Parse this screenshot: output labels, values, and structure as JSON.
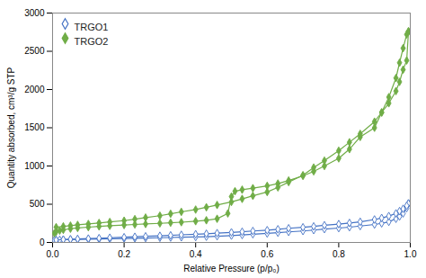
{
  "chart_data": {
    "type": "line",
    "title": "",
    "xlabel": "Relative Pressure (p/p₀)",
    "ylabel": "Quantity absorbed, cm³/g STP",
    "xlim": [
      0,
      1.0
    ],
    "ylim": [
      0,
      3000
    ],
    "xticks": [
      {
        "value": 0,
        "label": "0.0"
      },
      0.2,
      0.4,
      0.6,
      0.8,
      {
        "value": 1.0,
        "label": "1.0"
      }
    ],
    "yticks": [
      0,
      500,
      1000,
      1500,
      2000,
      2500,
      3000
    ],
    "grid": false,
    "legend": "upper left",
    "series": [
      {
        "name": "TRGO1",
        "color": "#4472C4",
        "marker": "diamond-open",
        "line_style": "solid",
        "x": [
          0.005,
          0.01,
          0.02,
          0.03,
          0.05,
          0.07,
          0.1,
          0.13,
          0.16,
          0.2,
          0.23,
          0.26,
          0.3,
          0.33,
          0.36,
          0.4,
          0.43,
          0.46,
          0.5,
          0.53,
          0.56,
          0.6,
          0.63,
          0.66,
          0.7,
          0.73,
          0.76,
          0.8,
          0.83,
          0.86,
          0.9,
          0.92,
          0.94,
          0.96,
          0.97,
          0.98,
          0.99,
          0.995
        ],
        "values": [
          30,
          32,
          34,
          36,
          38,
          40,
          42,
          45,
          48,
          52,
          55,
          58,
          62,
          65,
          68,
          72,
          76,
          82,
          90,
          98,
          108,
          118,
          128,
          138,
          150,
          162,
          175,
          188,
          200,
          215,
          235,
          250,
          270,
          310,
          340,
          380,
          450,
          510
        ]
      },
      {
        "color": "#4472C4",
        "marker": "diamond-open",
        "line_style": "solid",
        "x": [
          0.995,
          0.99,
          0.98,
          0.97,
          0.96,
          0.94,
          0.92,
          0.9,
          0.86,
          0.83,
          0.8,
          0.76,
          0.73,
          0.7,
          0.66,
          0.63,
          0.6,
          0.56,
          0.53,
          0.5,
          0.46,
          0.43,
          0.4,
          0.36,
          0.33,
          0.3,
          0.26,
          0.23,
          0.2,
          0.16,
          0.13,
          0.1,
          0.07,
          0.05,
          0.03,
          0.01
        ],
        "values": [
          510,
          480,
          440,
          410,
          380,
          345,
          320,
          300,
          270,
          255,
          240,
          225,
          210,
          198,
          185,
          172,
          160,
          150,
          140,
          132,
          122,
          114,
          108,
          100,
          93,
          87,
          80,
          74,
          68,
          62,
          56,
          51,
          46,
          42,
          38,
          32
        ]
      },
      {
        "name": "TRGO2",
        "color": "#70AD47",
        "marker": "diamond",
        "line_style": "solid",
        "x": [
          0.005,
          0.01,
          0.02,
          0.03,
          0.05,
          0.07,
          0.1,
          0.13,
          0.16,
          0.2,
          0.23,
          0.26,
          0.3,
          0.33,
          0.36,
          0.4,
          0.43,
          0.46,
          0.49,
          0.5,
          0.51,
          0.53,
          0.56,
          0.6,
          0.63,
          0.66,
          0.7,
          0.73,
          0.76,
          0.8,
          0.83,
          0.86,
          0.9,
          0.92,
          0.94,
          0.96,
          0.97,
          0.98,
          0.99,
          0.995
        ],
        "values": [
          120,
          140,
          155,
          165,
          180,
          190,
          200,
          210,
          218,
          228,
          235,
          242,
          250,
          258,
          265,
          278,
          290,
          310,
          380,
          600,
          670,
          690,
          710,
          740,
          770,
          810,
          870,
          930,
          1000,
          1100,
          1220,
          1380,
          1500,
          1700,
          1900,
          2150,
          2350,
          2540,
          2720,
          2760
        ]
      },
      {
        "color": "#70AD47",
        "marker": "diamond",
        "line_style": "solid",
        "x": [
          0.995,
          0.99,
          0.98,
          0.97,
          0.96,
          0.94,
          0.92,
          0.9,
          0.86,
          0.83,
          0.8,
          0.76,
          0.73,
          0.7,
          0.66,
          0.63,
          0.6,
          0.56,
          0.53,
          0.5,
          0.46,
          0.43,
          0.4,
          0.36,
          0.33,
          0.3,
          0.26,
          0.23,
          0.2,
          0.16,
          0.13,
          0.1,
          0.07,
          0.05,
          0.03,
          0.01
        ],
        "values": [
          2760,
          2380,
          2260,
          2100,
          1980,
          1820,
          1700,
          1580,
          1420,
          1310,
          1200,
          1070,
          980,
          880,
          790,
          720,
          660,
          610,
          570,
          530,
          490,
          460,
          430,
          400,
          375,
          350,
          325,
          305,
          285,
          268,
          255,
          242,
          230,
          220,
          210,
          200
        ]
      }
    ]
  }
}
